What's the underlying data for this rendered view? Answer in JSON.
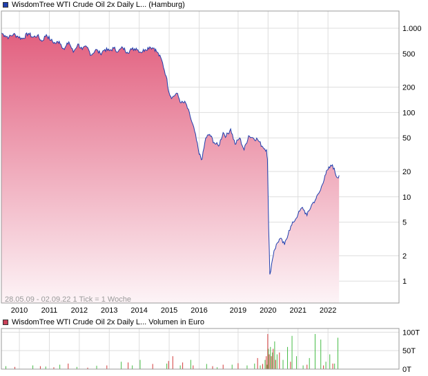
{
  "main_legend": {
    "label": "WisdomTree WTI Crude Oil 2x Daily L... (Hamburg)",
    "color": "#1f3fae"
  },
  "volume_legend": {
    "label": "WisdomTree WTI Crude Oil 2x Daily L... Volumen in Euro",
    "color": "#c94058"
  },
  "footnote": "28.05.09 - 02.09.22   1 Tick = 1 Woche",
  "colors": {
    "line": "#1f3fae",
    "fill_top": "#e2607f",
    "fill_bottom": "#fdf4f7",
    "vol_up": "#44bb44",
    "vol_down": "#d23838",
    "grid": "#dddddd"
  },
  "chart_data": [
    {
      "type": "area",
      "scale": "log",
      "ylim": [
        0.55,
        1600
      ],
      "y_ticks": [
        {
          "v": 1000,
          "label": "1.000"
        },
        {
          "v": 500,
          "label": "500"
        },
        {
          "v": 200,
          "label": "200"
        },
        {
          "v": 100,
          "label": "100"
        },
        {
          "v": 50,
          "label": "50"
        },
        {
          "v": 20,
          "label": "20"
        },
        {
          "v": 10,
          "label": "10"
        },
        {
          "v": 5,
          "label": "5"
        },
        {
          "v": 2,
          "label": "2"
        },
        {
          "v": 1,
          "label": "1"
        }
      ],
      "xlim": [
        2009.4,
        2022.67
      ],
      "x_ticks": [
        {
          "v": 2010.0,
          "label": "2010"
        },
        {
          "v": 2011.0,
          "label": "2011"
        },
        {
          "v": 2012.0,
          "label": "2012"
        },
        {
          "v": 2013.0,
          "label": "2013"
        },
        {
          "v": 2014.0,
          "label": "2014"
        },
        {
          "v": 2015.0,
          "label": "2015"
        },
        {
          "v": 2016.0,
          "label": "2016"
        },
        {
          "v": 2017.3,
          "label": "2019"
        },
        {
          "v": 2018.3,
          "label": "2020"
        },
        {
          "v": 2019.3,
          "label": "2021"
        },
        {
          "v": 2020.3,
          "label": "2022"
        }
      ],
      "series": [
        {
          "x": [
            2009.4,
            2009.52,
            2009.65,
            2009.8,
            2009.95,
            2010.1,
            2010.3,
            2010.45,
            2010.6,
            2010.75,
            2010.9,
            2011.05,
            2011.2,
            2011.33,
            2011.5,
            2011.65,
            2011.8,
            2011.95,
            2012.1,
            2012.25,
            2012.4,
            2012.55,
            2012.7,
            2012.85,
            2013.0,
            2013.15,
            2013.3,
            2013.45,
            2013.6,
            2013.75,
            2013.9,
            2014.05,
            2014.2,
            2014.35,
            2014.5,
            2014.6,
            2014.75,
            2014.9,
            2015.0,
            2015.1,
            2015.25,
            2015.4,
            2015.55,
            2015.7,
            2015.85,
            2016.0,
            2016.1,
            2016.22,
            2016.35,
            2016.5,
            2016.65,
            2016.8,
            2016.9,
            2017.05,
            2017.2,
            2017.35,
            2017.5,
            2017.65,
            2017.8,
            2017.95,
            2018.1,
            2018.25,
            2018.28,
            2018.32,
            2018.36,
            2018.42,
            2018.5,
            2018.6,
            2018.7,
            2018.85,
            2019.0,
            2019.15,
            2019.3,
            2019.45,
            2019.6,
            2019.75,
            2019.9,
            2020.05,
            2020.2,
            2020.3,
            2020.45,
            2020.6,
            2020.67
          ],
          "values": [
            880,
            820,
            780,
            850,
            800,
            750,
            870,
            780,
            820,
            700,
            840,
            720,
            660,
            700,
            560,
            690,
            520,
            650,
            560,
            600,
            480,
            560,
            500,
            560,
            540,
            580,
            530,
            590,
            520,
            560,
            580,
            520,
            560,
            600,
            580,
            520,
            420,
            270,
            170,
            150,
            170,
            130,
            130,
            90,
            60,
            32,
            28,
            50,
            55,
            44,
            40,
            58,
            52,
            64,
            42,
            50,
            36,
            53,
            50,
            48,
            40,
            36,
            28,
            4.2,
            1.2,
            1.6,
            2.3,
            2.8,
            3.2,
            2.7,
            4.0,
            5.0,
            6.2,
            7.5,
            6.0,
            8.0,
            9.5,
            12,
            18,
            21,
            24,
            17,
            18
          ]
        }
      ]
    },
    {
      "type": "bar",
      "ylim": [
        0,
        110
      ],
      "y_ticks": [
        {
          "v": 100,
          "label": "100T"
        },
        {
          "v": 50,
          "label": "50T"
        },
        {
          "v": 0,
          "label": "0T"
        }
      ],
      "up_x": [
        2009.55,
        2010.45,
        2010.88,
        2011.35,
        2011.92,
        2012.58,
        2013.4,
        2013.77,
        2014.03,
        2014.92,
        2015.37,
        2015.72,
        2016.25,
        2016.6,
        2017.1,
        2017.6,
        2017.85,
        2018.04,
        2018.2,
        2018.27,
        2018.31,
        2018.38,
        2018.45,
        2018.52,
        2018.6,
        2018.8,
        2018.95,
        2019.1,
        2019.25,
        2019.47,
        2019.68,
        2019.87,
        2020.06,
        2020.23,
        2020.36,
        2020.52,
        2020.63
      ],
      "up_v": [
        8,
        10,
        7,
        12,
        6,
        9,
        20,
        10,
        25,
        15,
        10,
        25,
        14,
        5,
        12,
        10,
        15,
        10,
        25,
        12,
        55,
        60,
        45,
        75,
        40,
        25,
        60,
        90,
        35,
        10,
        30,
        95,
        80,
        20,
        40,
        15,
        85
      ],
      "down_x": [
        2009.85,
        2010.7,
        2011.15,
        2011.63,
        2012.28,
        2012.92,
        2013.63,
        2014.45,
        2014.98,
        2015.12,
        2015.45,
        2015.8,
        2016.45,
        2016.8,
        2017.3,
        2017.95,
        2018.12,
        2018.24,
        2018.29,
        2018.34,
        2018.41,
        2018.47,
        2018.55,
        2018.68,
        2019.05,
        2019.6,
        2020.15,
        2020.46
      ],
      "down_v": [
        6,
        8,
        5,
        15,
        4,
        10,
        18,
        14,
        22,
        35,
        18,
        10,
        8,
        12,
        16,
        30,
        14,
        35,
        95,
        40,
        35,
        55,
        25,
        45,
        20,
        12,
        10,
        15
      ]
    }
  ]
}
